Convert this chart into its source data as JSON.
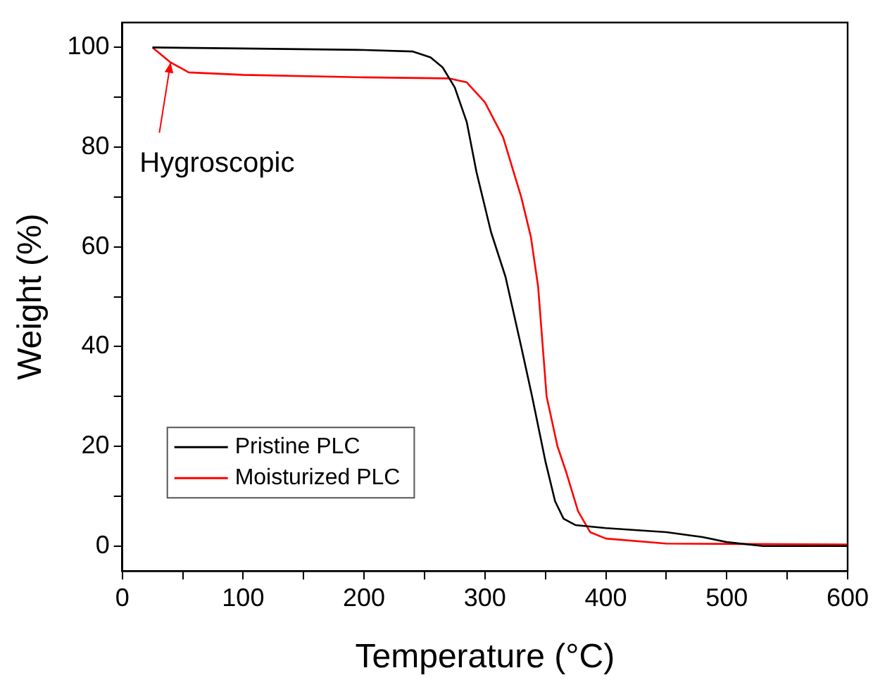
{
  "chart_data": {
    "type": "line",
    "xlabel": "Temperature (°C)",
    "ylabel": "Weight (%)",
    "xlim": [
      0,
      600
    ],
    "xticks": [
      0,
      {
        "value": 50,
        "label": null
      },
      100,
      {
        "value": 150,
        "label": null
      },
      200,
      {
        "value": 250,
        "label": null
      },
      300,
      {
        "value": 350,
        "label": null
      },
      400,
      {
        "value": 450,
        "label": null
      },
      500,
      {
        "value": 550,
        "label": null
      },
      600
    ],
    "ylim": [
      -5,
      105
    ],
    "yticks": [
      0,
      {
        "value": 10,
        "label": null
      },
      20,
      {
        "value": 30,
        "label": null
      },
      40,
      {
        "value": 50,
        "label": null
      },
      60,
      {
        "value": 70,
        "label": null
      },
      80,
      {
        "value": 90,
        "label": null
      },
      100
    ],
    "grid": false,
    "legend": "bottom left",
    "marker": "none",
    "line_style": "solid",
    "annotations": [
      {
        "text": "Hygroscopic",
        "x": 40,
        "y": 97
      }
    ],
    "series": [
      {
        "name": "Pristine PLC",
        "color": "#000000",
        "x": [
          25,
          100,
          200,
          240,
          255,
          265,
          275,
          285,
          293,
          305,
          317,
          330,
          339,
          350,
          358,
          365,
          375,
          400,
          450,
          480,
          500,
          530,
          600
        ],
        "values": [
          100,
          99.8,
          99.5,
          99.2,
          98,
          96,
          92,
          85,
          75,
          63,
          54,
          40,
          30,
          17,
          9,
          5.5,
          4.2,
          3.6,
          2.8,
          1.8,
          0.8,
          0,
          0
        ]
      },
      {
        "name": "Moisturized PLC",
        "color": "#ff0000",
        "x": [
          25,
          40,
          55,
          100,
          200,
          270,
          285,
          300,
          315,
          330,
          338,
          344,
          351,
          360,
          367,
          377,
          387,
          400,
          450,
          600
        ],
        "values": [
          100,
          97,
          95,
          94.5,
          94,
          93.8,
          93,
          89,
          82,
          70,
          62,
          52,
          30,
          20,
          15,
          7,
          2.8,
          1.5,
          0.5,
          0.3
        ]
      }
    ]
  }
}
